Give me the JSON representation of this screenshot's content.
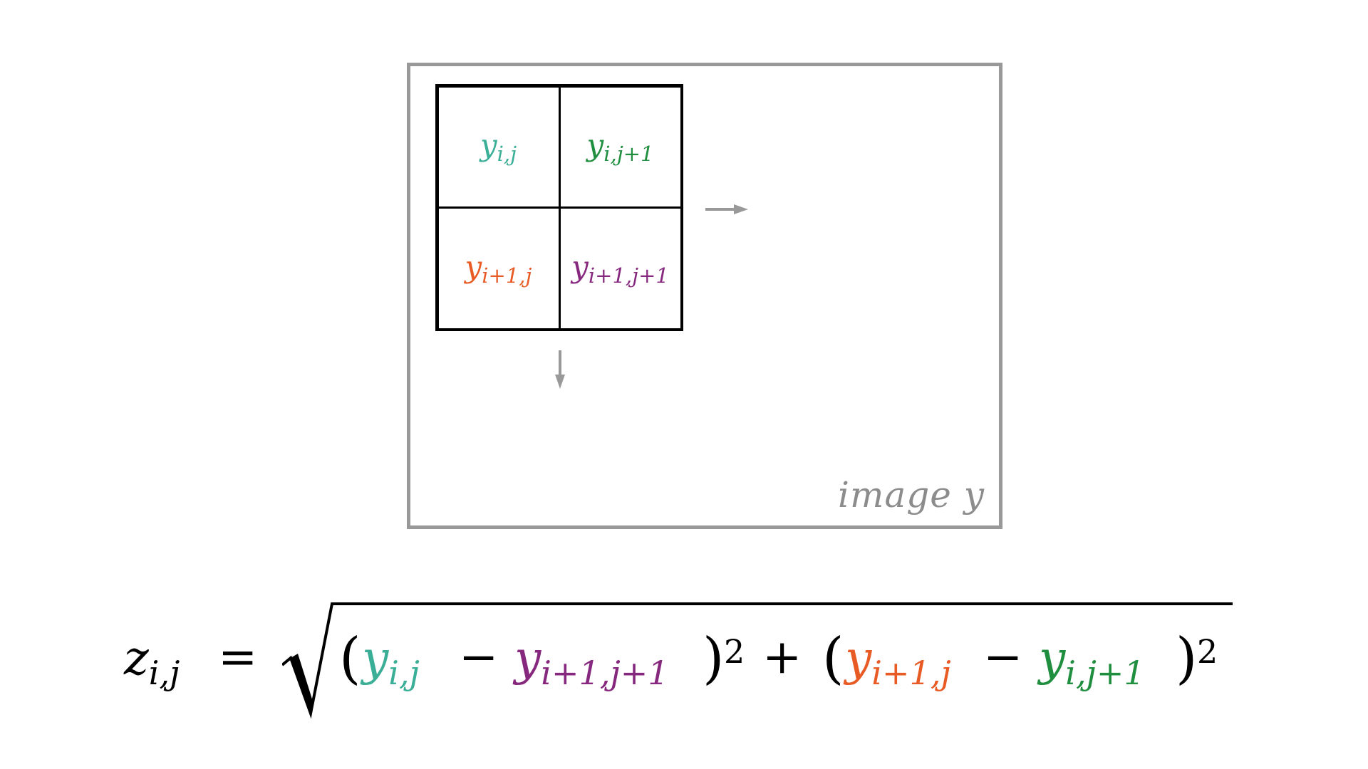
{
  "diagram": {
    "frame_label": "image y",
    "cells": [
      {
        "base": "y",
        "subscript": "i,j",
        "color": "#3aae96"
      },
      {
        "base": "y",
        "subscript": "i,j+1",
        "color": "#1f8e3f"
      },
      {
        "base": "y",
        "subscript": "i+1,j",
        "color": "#e85b25"
      },
      {
        "base": "y",
        "subscript": "i+1,j+1",
        "color": "#87287f"
      }
    ],
    "arrow_color": "#999999"
  },
  "equation": {
    "lhs_base": "z",
    "lhs_sub": "i,j",
    "equals": "=",
    "open_paren_1": "(",
    "t1_base": "y",
    "t1_sub": "i,j",
    "minus_1": "−",
    "t2_base": "y",
    "t2_sub": "i+1,j+1",
    "close_paren_1": ")",
    "exp_1": "2",
    "plus": "+",
    "open_paren_2": "(",
    "t3_base": "y",
    "t3_sub": "i+1,j",
    "minus_2": "−",
    "t4_base": "y",
    "t4_sub": "i,j+1",
    "close_paren_2": ")",
    "exp_2": "2"
  }
}
